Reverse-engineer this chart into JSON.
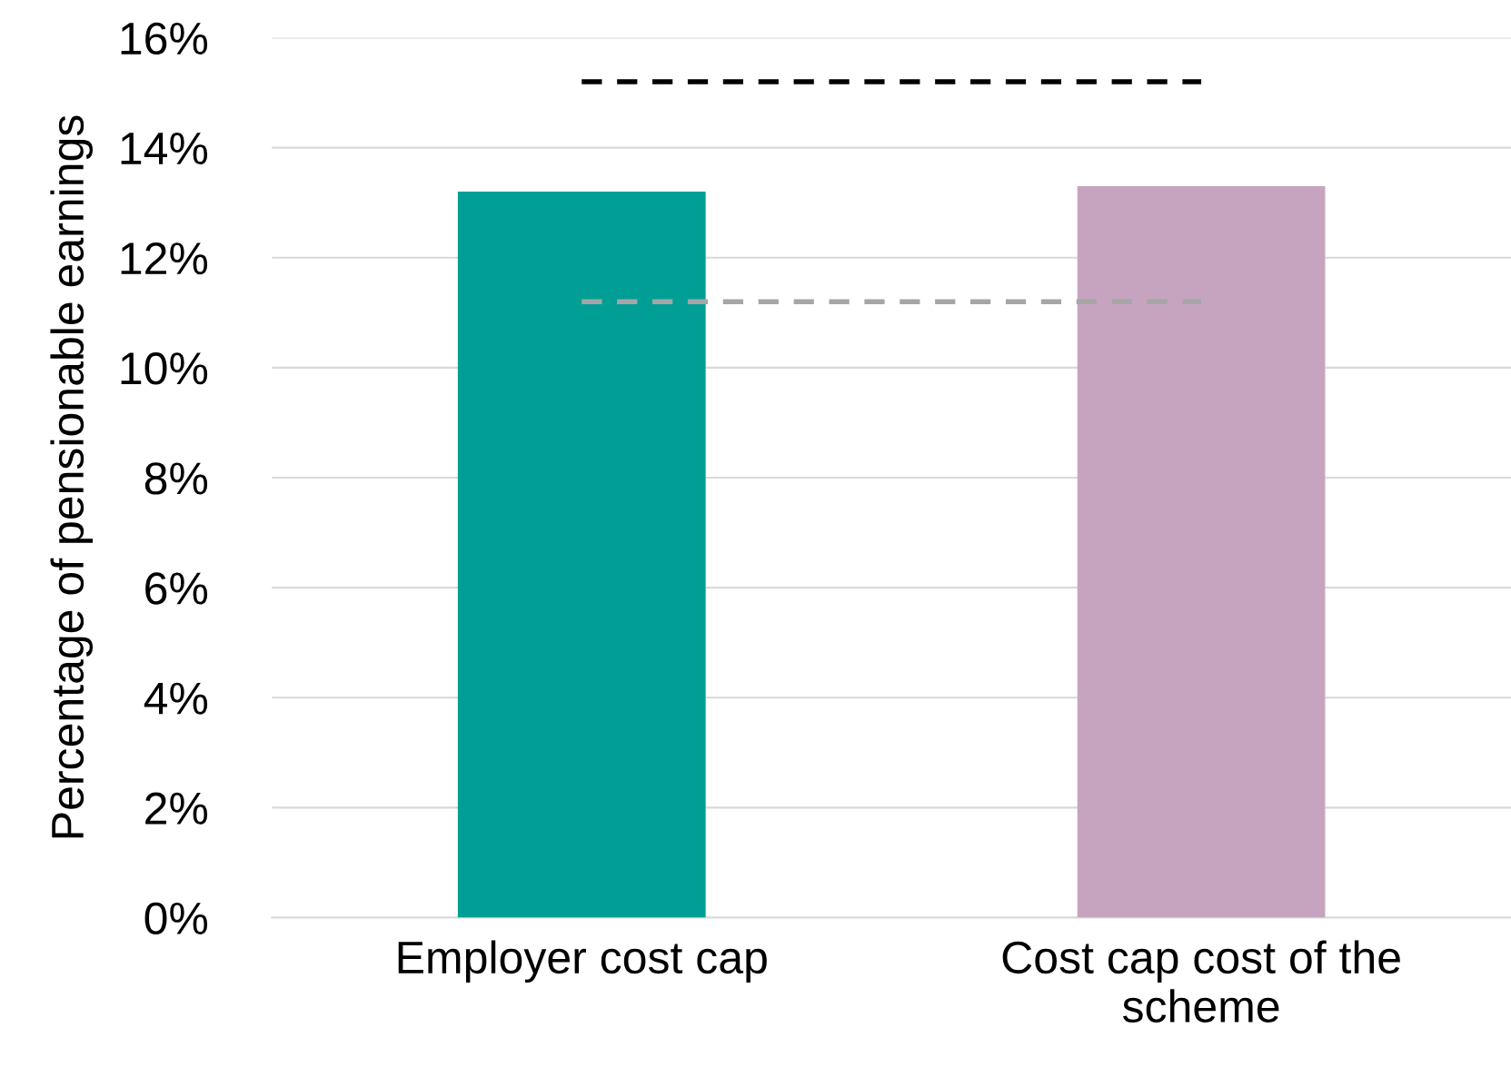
{
  "chart_data": {
    "type": "bar",
    "ylabel": "Percentage of pensionable earnings",
    "categories": [
      "Employer cost cap",
      "Cost cap cost of the\nscheme"
    ],
    "values": [
      13.2,
      13.3
    ],
    "colors": [
      "#009e94",
      "#c6a4c0"
    ],
    "ylim": [
      0,
      16
    ],
    "yticks": [
      {
        "value": 0,
        "label": "0%"
      },
      {
        "value": 2,
        "label": "2%"
      },
      {
        "value": 4,
        "label": "4%"
      },
      {
        "value": 6,
        "label": "6%"
      },
      {
        "value": 8,
        "label": "8%"
      },
      {
        "value": 10,
        "label": "10%"
      },
      {
        "value": 12,
        "label": "12%"
      },
      {
        "value": 14,
        "label": "14%"
      },
      {
        "value": 16,
        "label": "16%"
      }
    ],
    "grid": "y",
    "ref_lines": [
      {
        "axis": "y",
        "value": 15.2,
        "color": "#000000",
        "line_style": "dashed"
      },
      {
        "axis": "y",
        "value": 11.2,
        "color": "#a6a6a6",
        "line_style": "dashed"
      }
    ]
  }
}
